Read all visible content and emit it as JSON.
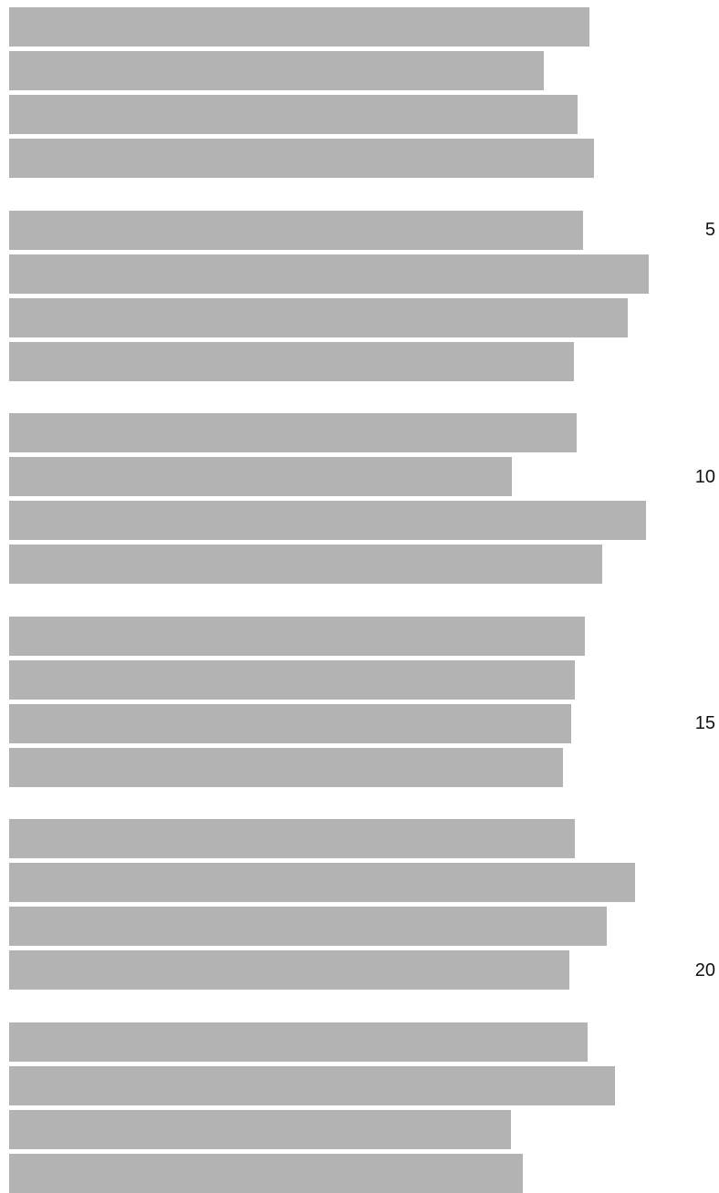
{
  "document": {
    "bar_color": "#b3b3b3",
    "paragraphs": [
      {
        "lines": [
          0.82,
          0.756,
          0.803,
          0.826
        ]
      },
      {
        "lines": [
          0.811,
          0.902,
          0.873,
          0.798
        ]
      },
      {
        "lines": [
          0.802,
          0.712,
          0.899,
          0.837
        ]
      },
      {
        "lines": [
          0.814,
          0.799,
          0.795,
          0.783
        ]
      },
      {
        "lines": [
          0.799,
          0.883,
          0.844,
          0.792
        ]
      },
      {
        "lines": [
          0.817,
          0.855,
          0.711,
          0.727
        ]
      }
    ],
    "line_numbers": [
      {
        "label": "5",
        "line": 5
      },
      {
        "label": "10",
        "line": 10
      },
      {
        "label": "15",
        "line": 15
      },
      {
        "label": "20",
        "line": 20
      }
    ]
  }
}
